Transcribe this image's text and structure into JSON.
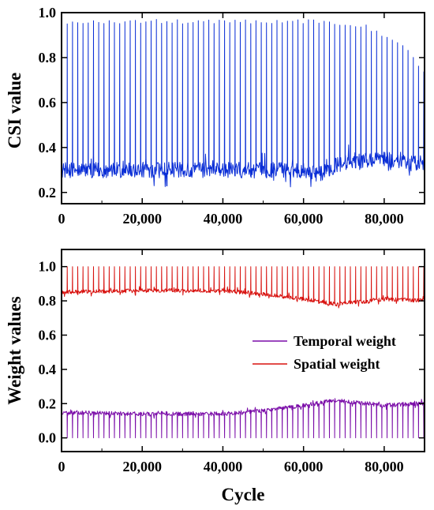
{
  "chart_data": [
    {
      "type": "line",
      "title": "",
      "xlabel": "",
      "ylabel": "CSI value",
      "xlim": [
        0,
        90000
      ],
      "ylim": [
        0.15,
        1.0
      ],
      "grid": false,
      "xticks": [
        0,
        20000,
        40000,
        60000,
        80000
      ],
      "xtick_labels": [
        "0",
        "20,000",
        "40,000",
        "60,000",
        "80,000"
      ],
      "yticks": [
        0.2,
        0.4,
        0.6,
        0.8,
        1.0
      ],
      "ytick_labels": [
        "0.2",
        "0.4",
        "0.6",
        "0.8",
        "1.0"
      ],
      "color": "#0a2ed6",
      "series": [
        {
          "baseline": [
            [
              0,
              0.3
            ],
            [
              20000,
              0.3
            ],
            [
              40000,
              0.3
            ],
            [
              60000,
              0.3
            ],
            [
              64000,
              0.28
            ],
            [
              68000,
              0.32
            ],
            [
              72000,
              0.34
            ],
            [
              80000,
              0.35
            ],
            [
              85000,
              0.33
            ],
            [
              90000,
              0.33
            ]
          ],
          "baseline_noise": 0.035,
          "spike_period": 1300,
          "spike_peaks": [
            [
              0,
              0.97
            ],
            [
              40000,
              0.97
            ],
            [
              62000,
              0.97
            ],
            [
              70000,
              0.96
            ],
            [
              75000,
              0.95
            ],
            [
              80000,
              0.9
            ],
            [
              85000,
              0.85
            ],
            [
              90000,
              0.75
            ]
          ]
        }
      ]
    },
    {
      "type": "line",
      "title": "",
      "xlabel": "Cycle",
      "ylabel": "Weight values",
      "xlim": [
        0,
        90000
      ],
      "ylim": [
        -0.08,
        1.1
      ],
      "grid": false,
      "legend_position": "center-right",
      "xticks": [
        0,
        20000,
        40000,
        60000,
        80000
      ],
      "xtick_labels": [
        "0",
        "20,000",
        "40,000",
        "60,000",
        "80,000"
      ],
      "yticks": [
        0.0,
        0.2,
        0.4,
        0.6,
        0.8,
        1.0
      ],
      "ytick_labels": [
        "0.0",
        "0.2",
        "0.4",
        "0.6",
        "0.8",
        "1.0"
      ],
      "series": [
        {
          "name": "Temporal weight",
          "color": "#7a0ca8",
          "baseline": [
            [
              0,
              0.15
            ],
            [
              20000,
              0.14
            ],
            [
              40000,
              0.14
            ],
            [
              50000,
              0.16
            ],
            [
              60000,
              0.19
            ],
            [
              68000,
              0.22
            ],
            [
              72000,
              0.21
            ],
            [
              80000,
              0.19
            ],
            [
              90000,
              0.2
            ]
          ],
          "baseline_noise": 0.012,
          "spike_period": 1300,
          "spike_extreme": 0.0
        },
        {
          "name": "Spatial weight",
          "color": "#d8120f",
          "baseline": [
            [
              0,
              0.85
            ],
            [
              20000,
              0.86
            ],
            [
              40000,
              0.86
            ],
            [
              50000,
              0.84
            ],
            [
              60000,
              0.81
            ],
            [
              68000,
              0.78
            ],
            [
              72000,
              0.79
            ],
            [
              80000,
              0.81
            ],
            [
              90000,
              0.8
            ]
          ],
          "baseline_noise": 0.012,
          "spike_period": 1300,
          "spike_extreme": 1.0
        }
      ]
    }
  ]
}
